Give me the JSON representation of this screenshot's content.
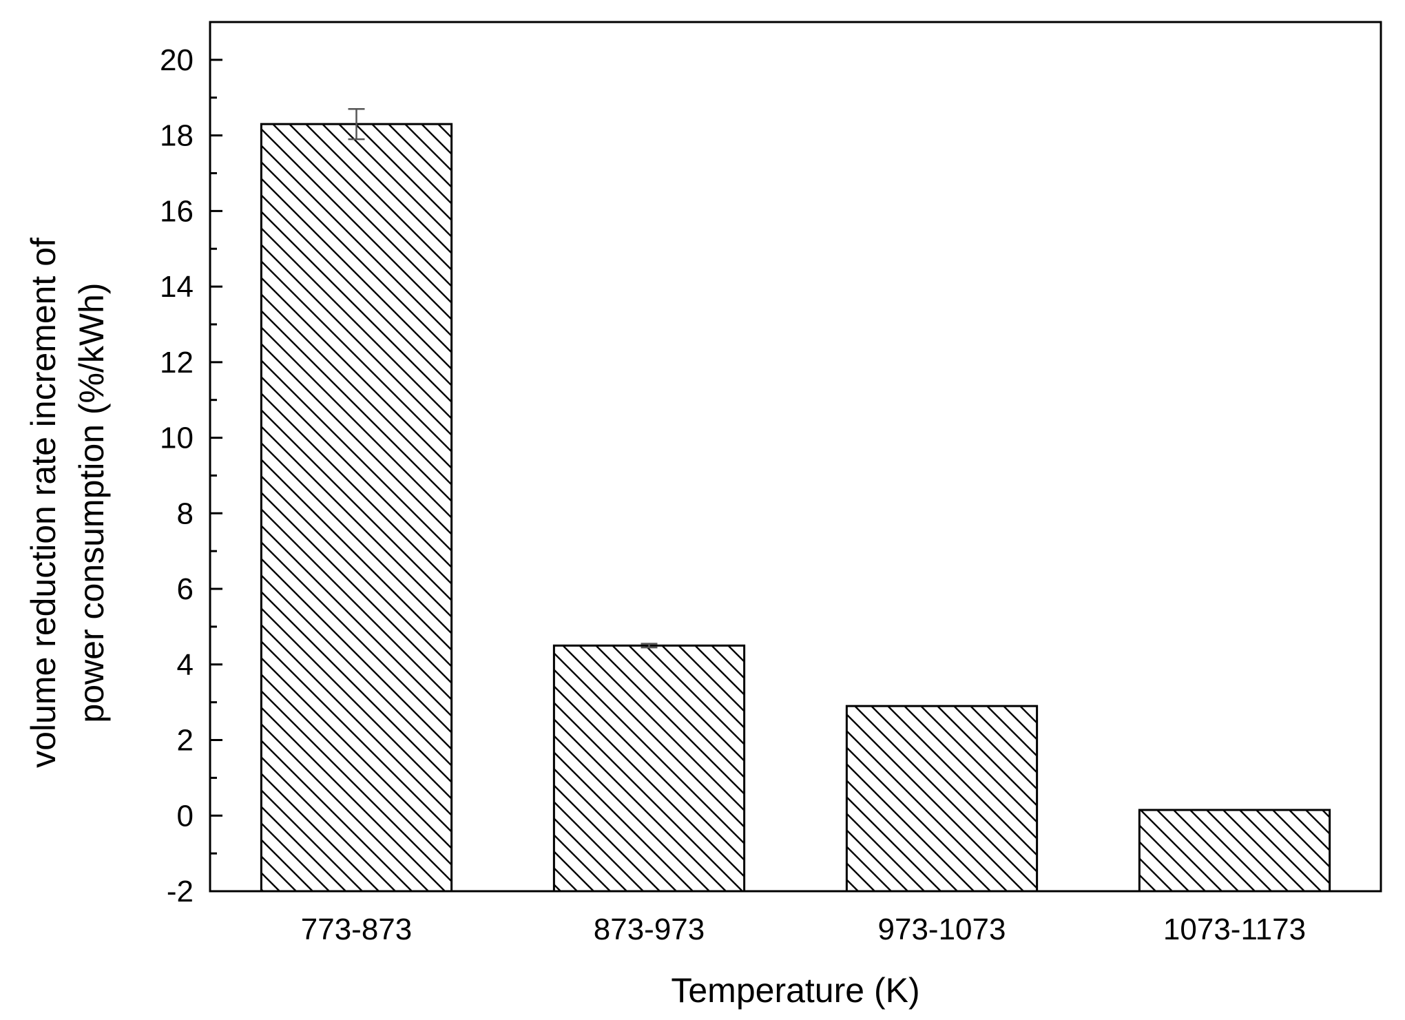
{
  "chart_data": {
    "type": "bar",
    "title": "",
    "xlabel": "Temperature (K)",
    "ylabel_lines": [
      "volume reduction rate increment of",
      "power consumption (%/kWh)"
    ],
    "categories": [
      "773-873",
      "873-973",
      "973-1073",
      "1073-1173"
    ],
    "values": [
      18.3,
      4.5,
      2.9,
      0.15
    ],
    "error_bars": [
      0.4,
      0.05,
      0.0,
      0.0
    ],
    "ylim": [
      -2,
      21
    ],
    "y_ticks": [
      -2,
      0,
      2,
      4,
      6,
      8,
      10,
      12,
      14,
      16,
      18,
      20
    ],
    "y_tick_labels": [
      "-2",
      "0",
      "2",
      "4",
      "6",
      "8",
      "10",
      "12",
      "14",
      "16",
      "18",
      "20"
    ],
    "y_minor_step": 1,
    "grid": false,
    "legend": "none",
    "bar_fill": "diagonal-hatch",
    "colors": {
      "bar_stroke": "#000000",
      "hatch": "#000000",
      "background": "#ffffff",
      "axis": "#000000"
    }
  }
}
